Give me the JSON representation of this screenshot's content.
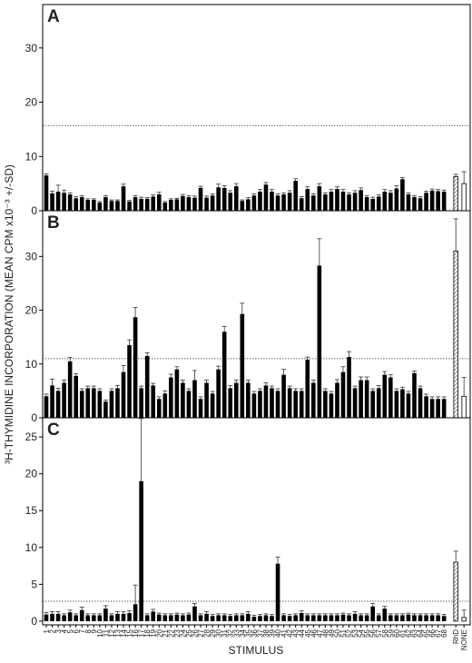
{
  "chart_data": {
    "type": "bar",
    "y_label": "³H-THYMIDINE INCORPORATION (MEAN CPM x10⁻³ +/-SD)",
    "x_label": "STIMULUS",
    "categories": [
      "1",
      "2",
      "3",
      "4",
      "5",
      "6",
      "7",
      "8",
      "9",
      "10",
      "11",
      "12",
      "13",
      "14",
      "15",
      "16",
      "17",
      "18",
      "19",
      "20",
      "21",
      "22",
      "23",
      "24",
      "25",
      "26",
      "27",
      "28",
      "29",
      "30",
      "31",
      "32",
      "33",
      "34",
      "35",
      "36",
      "37",
      "38",
      "39",
      "40",
      "41",
      "42",
      "43",
      "44",
      "45",
      "46",
      "47",
      "48",
      "49",
      "50",
      "51",
      "52",
      "53",
      "54",
      "55",
      "56",
      "57",
      "58",
      "59",
      "60",
      "61",
      "62",
      "63",
      "64",
      "65",
      "66",
      "67",
      "68",
      "RhD",
      "NONE"
    ],
    "color": "#000000",
    "hatched": [
      68
    ],
    "open": [
      69
    ],
    "panels": [
      {
        "label": "A",
        "ylim": [
          0,
          38
        ],
        "yticks": [
          0,
          10,
          20,
          30
        ],
        "threshold": 15.7,
        "values": [
          6.5,
          3.2,
          3.5,
          3.3,
          3.0,
          2.3,
          2.5,
          2.0,
          2.0,
          1.5,
          2.5,
          1.8,
          1.8,
          4.5,
          1.7,
          2.5,
          2.2,
          2.2,
          2.6,
          3.0,
          1.5,
          2.0,
          2.1,
          2.7,
          2.5,
          2.4,
          4.2,
          2.4,
          2.8,
          4.3,
          4.2,
          3.3,
          4.5,
          1.8,
          2.1,
          2.8,
          3.5,
          4.8,
          3.5,
          2.8,
          3.0,
          3.3,
          5.5,
          2.3,
          4.0,
          2.8,
          4.5,
          3.0,
          3.5,
          4.0,
          3.5,
          3.0,
          3.3,
          3.8,
          2.5,
          2.2,
          2.6,
          3.5,
          3.3,
          4.1,
          5.8,
          3.0,
          2.5,
          2.3,
          3.3,
          3.7,
          3.6,
          3.5,
          6.3,
          5.0
        ],
        "errors": [
          0.3,
          0.4,
          1.2,
          0.5,
          0.3,
          0.3,
          0.3,
          0.2,
          0.2,
          0.2,
          0.3,
          0.2,
          0.2,
          0.4,
          0.2,
          0.3,
          0.3,
          0.2,
          0.3,
          0.4,
          0.2,
          0.2,
          0.2,
          0.3,
          0.3,
          0.3,
          0.3,
          0.3,
          0.3,
          0.6,
          0.4,
          0.4,
          0.5,
          0.2,
          0.3,
          0.3,
          0.4,
          0.4,
          0.4,
          0.3,
          0.3,
          0.4,
          0.4,
          0.3,
          0.4,
          0.3,
          0.5,
          0.3,
          0.4,
          0.4,
          0.4,
          0.3,
          0.4,
          0.4,
          0.3,
          0.3,
          0.3,
          0.4,
          0.4,
          0.5,
          0.3,
          0.3,
          0.3,
          0.3,
          0.3,
          0.3,
          0.3,
          0.3,
          0.4,
          2.2
        ]
      },
      {
        "label": "B",
        "ylim": [
          0,
          38.5
        ],
        "yticks": [
          0,
          10,
          20,
          30
        ],
        "threshold": 11,
        "values": [
          4,
          6,
          5,
          6.5,
          10.5,
          7.8,
          5,
          5.5,
          5.5,
          5,
          3,
          5,
          5.5,
          8.5,
          13.5,
          18.7,
          5.5,
          11.5,
          6,
          3.5,
          4.5,
          7.5,
          9,
          6.5,
          5,
          7,
          3.5,
          6.5,
          4.5,
          9,
          16,
          5.5,
          6.5,
          19.3,
          6.5,
          4.5,
          5,
          6,
          5.5,
          5,
          8,
          5.5,
          5,
          5,
          10.8,
          6.5,
          28.3,
          5,
          4.5,
          6.5,
          8.5,
          11.3,
          5.5,
          7,
          7,
          5,
          5.5,
          8,
          7.5,
          5,
          5.3,
          4.5,
          8.3,
          5.5,
          4,
          3.5,
          3.5,
          3.5,
          31,
          4
        ],
        "errors": [
          0.4,
          1.2,
          0.5,
          0.5,
          0.7,
          0.4,
          0.4,
          0.4,
          0.4,
          0.4,
          0.3,
          0.4,
          0.5,
          1.2,
          1.0,
          1.8,
          0.4,
          0.6,
          0.4,
          0.4,
          0.5,
          0.6,
          0.5,
          0.5,
          0.4,
          1.8,
          0.4,
          0.5,
          0.4,
          0.6,
          1.0,
          0.5,
          0.5,
          2.0,
          0.5,
          0.4,
          0.4,
          0.5,
          0.4,
          0.4,
          1.0,
          0.4,
          0.4,
          0.4,
          0.5,
          0.5,
          5.0,
          0.4,
          0.4,
          0.6,
          1.0,
          1.0,
          0.4,
          0.6,
          0.6,
          0.4,
          0.5,
          0.6,
          0.5,
          0.4,
          0.4,
          0.4,
          0.4,
          0.4,
          0.4,
          0.4,
          0.4,
          0.4,
          6.0,
          3.5
        ]
      },
      {
        "label": "C",
        "ylim": [
          -0.5,
          27.6
        ],
        "yticks": [
          0,
          5,
          10,
          15,
          20,
          25
        ],
        "threshold": 2.7,
        "values": [
          0.9,
          1.0,
          1.0,
          0.8,
          1.2,
          0.8,
          1.5,
          0.8,
          0.8,
          0.8,
          1.7,
          0.8,
          1.0,
          1.0,
          1.1,
          2.3,
          19,
          0.8,
          1.3,
          0.9,
          0.8,
          0.8,
          0.9,
          0.8,
          0.9,
          2.0,
          0.8,
          1.0,
          0.7,
          0.8,
          0.8,
          0.7,
          0.8,
          0.8,
          1.0,
          0.6,
          0.7,
          0.8,
          0.7,
          7.8,
          0.8,
          0.7,
          0.8,
          1.1,
          0.8,
          0.8,
          0.8,
          0.8,
          0.8,
          0.8,
          0.9,
          0.8,
          1.0,
          0.8,
          0.8,
          2.0,
          0.8,
          1.7,
          0.8,
          0.8,
          0.8,
          0.9,
          0.8,
          0.8,
          0.8,
          0.8,
          0.8,
          0.7,
          8,
          0.5
        ],
        "errors": [
          0.3,
          0.3,
          0.3,
          0.2,
          0.3,
          0.2,
          0.4,
          0.2,
          0.2,
          0.2,
          0.4,
          0.2,
          0.3,
          0.3,
          0.3,
          2.6,
          8.5,
          0.2,
          0.3,
          0.2,
          0.2,
          0.2,
          0.2,
          0.2,
          0.2,
          0.4,
          0.2,
          0.3,
          0.2,
          0.2,
          0.2,
          0.2,
          0.2,
          0.2,
          0.3,
          0.2,
          0.2,
          0.2,
          0.2,
          0.9,
          0.2,
          0.2,
          0.2,
          0.3,
          0.2,
          0.2,
          0.2,
          0.2,
          0.2,
          0.2,
          0.2,
          0.2,
          0.3,
          0.2,
          0.2,
          0.4,
          0.2,
          0.3,
          0.2,
          0.2,
          0.2,
          0.2,
          0.2,
          0.2,
          0.2,
          0.2,
          0.2,
          0.2,
          1.5,
          1.0
        ]
      }
    ]
  }
}
